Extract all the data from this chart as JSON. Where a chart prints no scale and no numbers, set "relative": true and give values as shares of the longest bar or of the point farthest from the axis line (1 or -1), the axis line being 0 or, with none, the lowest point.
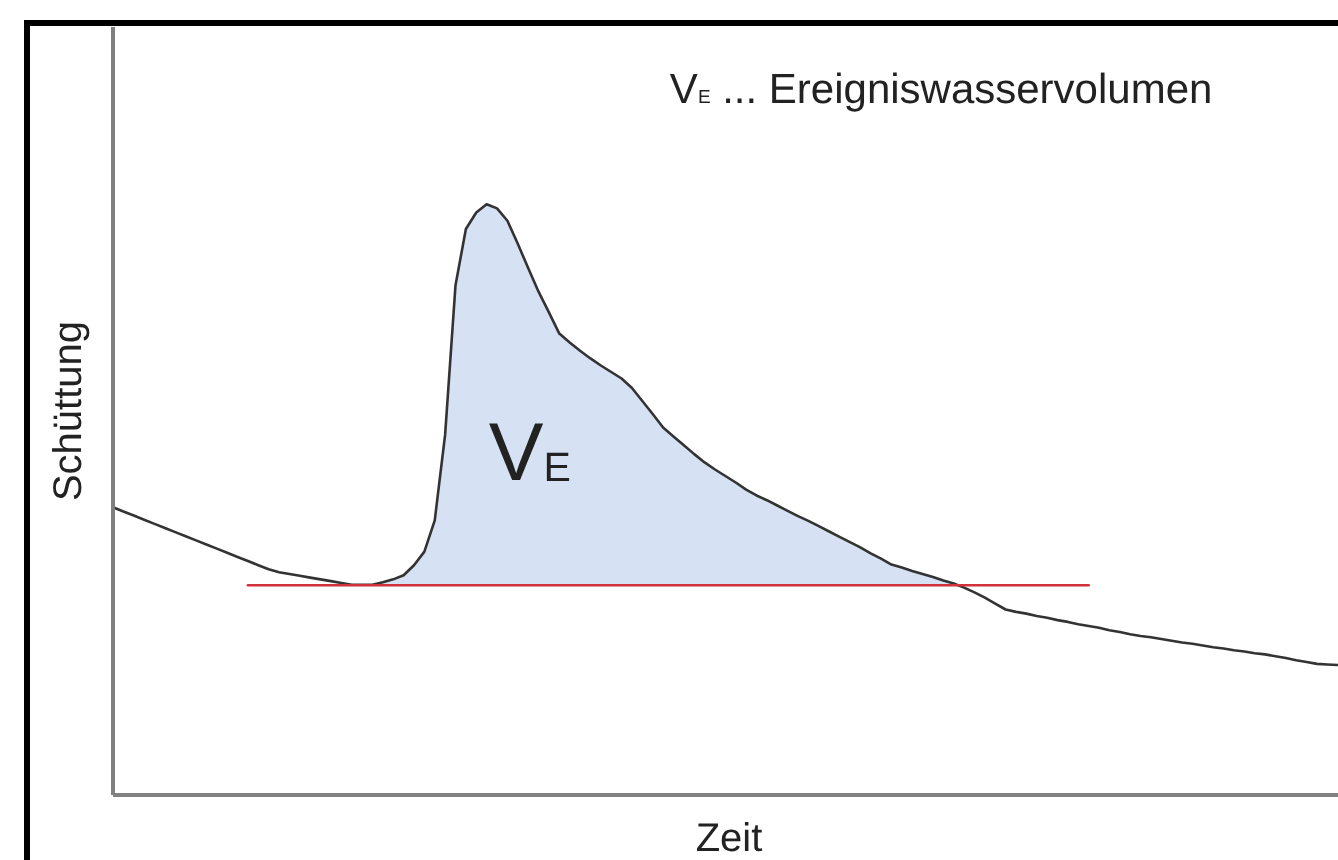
{
  "chart_data": {
    "type": "line",
    "relative": true,
    "xlabel": "Zeit",
    "ylabel": "Schüttung",
    "tick_labels": false,
    "annotations": [
      "V$_{E}$ ... Ereigniswasservolumen",
      "V$_{E}$"
    ],
    "categories": [
      null,
      null,
      null,
      null,
      null,
      null,
      null,
      null,
      null,
      null,
      null,
      null,
      null,
      null,
      null,
      null,
      null,
      null,
      null,
      null,
      null,
      null,
      null,
      null,
      null,
      null,
      null,
      null,
      null,
      null,
      null,
      null,
      null,
      null,
      null,
      null,
      null,
      null,
      null,
      null,
      null,
      null,
      null,
      null,
      null,
      null,
      null,
      null,
      null,
      null,
      null,
      null,
      null,
      null,
      null,
      null,
      null,
      null,
      null,
      null,
      null,
      null,
      null,
      null,
      null,
      null,
      null,
      null,
      null,
      null,
      null,
      null,
      null,
      null,
      null,
      null,
      null,
      null,
      null,
      null,
      null,
      null,
      null,
      null,
      null,
      null,
      null,
      null,
      null,
      null,
      null,
      null,
      null,
      null,
      null,
      null,
      null,
      null,
      null,
      null,
      null,
      null,
      null,
      null,
      null,
      null,
      null,
      null,
      null,
      null,
      null,
      null,
      null,
      null,
      null,
      null,
      null,
      null,
      null
    ],
    "series": [
      {
        "type": "area",
        "color": "#d6e2f3",
        "values": [
          null,
          null,
          null,
          null,
          null,
          null,
          null,
          null,
          null,
          null,
          null,
          null,
          null,
          null,
          null,
          null,
          null,
          null,
          null,
          null,
          null,
          null,
          null,
          null,
          null,
          null,
          null,
          null,
          null,
          null,
          null,
          null,
          null,
          null,
          null,
          null,
          null,
          null,
          null,
          null,
          null,
          null,
          null,
          null,
          null,
          null,
          null,
          null,
          null,
          null,
          null,
          null,
          null,
          null,
          null,
          null,
          null,
          null,
          null,
          null,
          null,
          null,
          null,
          null,
          null,
          null,
          null,
          null,
          null,
          null,
          null,
          null,
          null,
          null,
          null,
          null,
          null,
          null,
          null,
          null,
          null,
          null,
          null,
          null,
          null,
          null,
          null,
          null,
          null,
          null,
          null,
          null,
          null,
          null,
          null,
          null,
          null,
          null,
          null,
          null,
          null,
          null,
          null,
          null,
          null,
          null,
          null,
          null,
          null,
          null,
          null,
          null,
          null,
          null,
          null,
          null,
          null,
          null,
          null
        ],
        "lower": [
          null,
          null,
          null,
          null,
          null,
          null,
          null,
          null,
          null,
          null,
          null,
          null,
          null,
          null,
          null,
          null,
          null,
          null,
          null,
          null,
          null,
          null,
          null,
          0.355,
          0.355,
          0.355,
          0.355,
          0.355,
          0.355,
          0.355,
          0.355,
          0.355,
          0.355,
          0.355,
          0.355,
          0.355,
          0.355,
          0.355,
          0.355,
          0.355,
          0.355,
          0.355,
          0.355,
          0.355,
          0.355,
          0.355,
          0.355,
          0.355,
          0.355,
          0.355,
          0.355,
          0.355,
          0.355,
          0.355,
          0.355,
          0.355,
          0.355,
          0.355,
          0.355,
          0.355,
          0.355,
          0.355,
          0.355,
          0.355,
          0.355,
          0.355,
          0.355,
          0.355,
          0.355,
          0.355,
          0.355,
          0.355,
          0.355,
          0.355,
          0.355,
          0.355,
          0.355,
          0.355,
          0.355,
          0.355,
          0.355,
          0.355,
          null,
          null,
          null,
          null,
          null,
          null,
          null,
          null,
          null,
          null,
          null,
          null,
          null,
          null,
          null,
          null,
          null,
          null,
          null,
          null,
          null,
          null,
          null,
          null,
          null,
          null,
          null,
          null,
          null,
          null,
          null,
          null,
          null,
          null,
          null,
          null,
          null
        ],
        "upper": [
          null,
          null,
          null,
          null,
          null,
          null,
          null,
          null,
          null,
          null,
          null,
          null,
          null,
          null,
          null,
          null,
          null,
          null,
          null,
          null,
          null,
          null,
          null,
          0.356,
          0.356,
          0.356,
          0.36,
          0.365,
          0.372,
          0.389,
          0.412,
          0.465,
          0.61,
          0.863,
          0.958,
          0.986,
          1.0,
          0.993,
          0.972,
          0.933,
          0.892,
          0.852,
          0.817,
          0.781,
          0.766,
          0.752,
          0.739,
          0.727,
          0.716,
          0.705,
          0.689,
          0.667,
          0.645,
          0.622,
          0.607,
          0.592,
          0.577,
          0.563,
          0.551,
          0.54,
          0.529,
          0.517,
          0.507,
          0.499,
          0.49,
          0.481,
          0.472,
          0.464,
          0.455,
          0.446,
          0.437,
          0.428,
          0.419,
          0.409,
          0.4,
          0.39,
          0.385,
          0.379,
          0.374,
          0.369,
          0.363,
          0.358,
          null,
          null,
          null,
          null,
          null,
          null,
          null,
          null,
          null,
          null,
          null,
          null,
          null,
          null,
          null,
          null,
          null,
          null,
          null,
          null,
          null,
          null,
          null,
          null,
          null,
          null,
          null,
          null,
          null,
          null,
          null,
          null,
          null,
          null,
          null,
          null,
          null
        ]
      },
      {
        "color": "#333333",
        "values": [
          0.487,
          0.48,
          0.473,
          0.466,
          0.459,
          0.452,
          0.445,
          0.438,
          0.431,
          0.424,
          0.417,
          0.41,
          0.403,
          0.396,
          0.389,
          0.382,
          0.377,
          0.374,
          0.371,
          0.368,
          0.365,
          0.362,
          0.359,
          0.356,
          0.356,
          0.356,
          0.36,
          0.365,
          0.372,
          0.389,
          0.412,
          0.465,
          0.61,
          0.863,
          0.958,
          0.986,
          1.0,
          0.993,
          0.972,
          0.933,
          0.892,
          0.852,
          0.817,
          0.781,
          0.766,
          0.752,
          0.739,
          0.727,
          0.716,
          0.705,
          0.689,
          0.667,
          0.645,
          0.622,
          0.607,
          0.592,
          0.577,
          0.563,
          0.551,
          0.54,
          0.529,
          0.517,
          0.507,
          0.499,
          0.49,
          0.481,
          0.472,
          0.464,
          0.455,
          0.446,
          0.437,
          0.428,
          0.419,
          0.409,
          0.4,
          0.39,
          0.385,
          0.379,
          0.374,
          0.369,
          0.363,
          0.358,
          0.351,
          0.343,
          0.334,
          0.324,
          0.314,
          0.31,
          0.307,
          0.303,
          0.3,
          0.296,
          0.293,
          0.289,
          0.286,
          0.283,
          0.279,
          0.276,
          0.272,
          0.269,
          0.267,
          0.264,
          0.261,
          0.258,
          0.256,
          0.253,
          0.25,
          0.248,
          0.245,
          0.243,
          0.24,
          0.238,
          0.235,
          0.232,
          0.228,
          0.225,
          0.222,
          0.221,
          0.22
        ]
      },
      {
        "color": "#d0313b",
        "values": [
          null,
          null,
          null,
          null,
          null,
          null,
          null,
          null,
          null,
          null,
          null,
          null,
          null,
          0.355,
          0.355,
          0.355,
          0.355,
          0.355,
          0.355,
          0.355,
          0.355,
          0.355,
          0.355,
          0.355,
          0.355,
          0.355,
          0.355,
          0.355,
          0.355,
          0.355,
          0.355,
          0.355,
          0.355,
          0.355,
          0.355,
          0.355,
          0.355,
          0.355,
          0.355,
          0.355,
          0.355,
          0.355,
          0.355,
          0.355,
          0.355,
          0.355,
          0.355,
          0.355,
          0.355,
          0.355,
          0.355,
          0.355,
          0.355,
          0.355,
          0.355,
          0.355,
          0.355,
          0.355,
          0.355,
          0.355,
          0.355,
          0.355,
          0.355,
          0.355,
          0.355,
          0.355,
          0.355,
          0.355,
          0.355,
          0.355,
          0.355,
          0.355,
          0.355,
          0.355,
          0.355,
          0.355,
          0.355,
          0.355,
          0.355,
          0.355,
          0.355,
          0.355,
          0.355,
          0.355,
          0.355,
          0.355,
          0.355,
          0.355,
          0.355,
          0.355,
          0.355,
          0.355,
          0.355,
          0.355,
          0.355,
          null,
          null,
          null,
          null,
          null,
          null,
          null,
          null,
          null,
          null,
          null,
          null,
          null,
          null,
          null,
          null,
          null,
          null,
          null,
          null,
          null,
          null,
          null,
          null
        ]
      }
    ]
  }
}
